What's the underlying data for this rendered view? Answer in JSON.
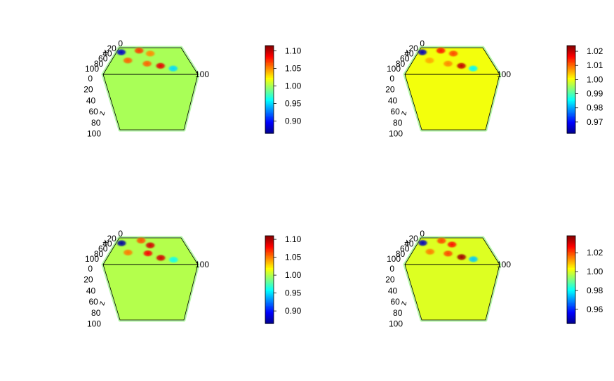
{
  "chart_data": [
    {
      "type": "heatmap",
      "x_axis_label": "x",
      "z_axis_label": "z",
      "y_ticks": [
        "0",
        "20",
        "40",
        "60",
        "80",
        "100"
      ],
      "z_ticks": [
        "0",
        "20",
        "40",
        "60",
        "80",
        "100"
      ],
      "x_end_tick": "100",
      "colorbar": {
        "ticks": [
          0.9,
          0.95,
          1.0,
          1.05,
          1.1
        ],
        "labels": [
          "0.90",
          "0.95",
          "1.00",
          "1.05",
          "1.10"
        ],
        "range": [
          0.865,
          1.115
        ]
      },
      "blobs": [
        {
          "u": 0.07,
          "v": 0.17,
          "value": 0.88
        },
        {
          "u": 0.33,
          "v": 0.11,
          "value": 1.07
        },
        {
          "u": 0.5,
          "v": 0.22,
          "value": 1.05
        },
        {
          "u": 0.21,
          "v": 0.48,
          "value": 1.06
        },
        {
          "u": 0.46,
          "v": 0.6,
          "value": 1.06
        },
        {
          "u": 0.62,
          "v": 0.68,
          "value": 1.09
        },
        {
          "u": 0.76,
          "v": 0.78,
          "value": 0.95
        }
      ]
    },
    {
      "type": "heatmap",
      "x_axis_label": "x",
      "z_axis_label": "z",
      "y_ticks": [
        "0",
        "20",
        "40",
        "60",
        "80",
        "100"
      ],
      "z_ticks": [
        "0",
        "20",
        "40",
        "60",
        "80",
        "100"
      ],
      "x_end_tick": "100",
      "colorbar": {
        "ticks": [
          0.97,
          0.98,
          0.99,
          1.0,
          1.01,
          1.02
        ],
        "labels": [
          "0.97",
          "0.98",
          "0.99",
          "1.00",
          "1.01",
          "1.02"
        ],
        "range": [
          0.962,
          1.024
        ]
      },
      "blobs": [
        {
          "u": 0.06,
          "v": 0.17,
          "value": 0.965
        },
        {
          "u": 0.33,
          "v": 0.11,
          "value": 1.015
        },
        {
          "u": 0.52,
          "v": 0.22,
          "value": 1.012
        },
        {
          "u": 0.21,
          "v": 0.48,
          "value": 1.006
        },
        {
          "u": 0.45,
          "v": 0.6,
          "value": 1.008
        },
        {
          "u": 0.61,
          "v": 0.68,
          "value": 1.02
        },
        {
          "u": 0.74,
          "v": 0.78,
          "value": 0.985
        }
      ]
    },
    {
      "type": "heatmap",
      "x_axis_label": "x",
      "z_axis_label": "z",
      "y_ticks": [
        "0",
        "20",
        "40",
        "60",
        "80",
        "100"
      ],
      "z_ticks": [
        "0",
        "20",
        "40",
        "60",
        "80",
        "100"
      ],
      "x_end_tick": "100",
      "colorbar": {
        "ticks": [
          0.9,
          0.95,
          1.0,
          1.05,
          1.1
        ],
        "labels": [
          "0.90",
          "0.95",
          "1.00",
          "1.05",
          "1.10"
        ],
        "range": [
          0.865,
          1.11
        ]
      },
      "blobs": [
        {
          "u": 0.08,
          "v": 0.2,
          "value": 0.87
        },
        {
          "u": 0.36,
          "v": 0.1,
          "value": 1.06
        },
        {
          "u": 0.5,
          "v": 0.28,
          "value": 1.09
        },
        {
          "u": 0.22,
          "v": 0.55,
          "value": 1.05
        },
        {
          "u": 0.47,
          "v": 0.58,
          "value": 1.08
        },
        {
          "u": 0.62,
          "v": 0.75,
          "value": 1.09
        },
        {
          "u": 0.76,
          "v": 0.82,
          "value": 0.96
        }
      ]
    },
    {
      "type": "heatmap",
      "x_axis_label": "x",
      "z_axis_label": "z",
      "y_ticks": [
        "0",
        "20",
        "40",
        "60",
        "80",
        "100"
      ],
      "z_ticks": [
        "0",
        "20",
        "40",
        "60",
        "80",
        "100"
      ],
      "x_end_tick": "100",
      "colorbar": {
        "ticks": [
          0.96,
          0.98,
          1.0,
          1.02
        ],
        "labels": [
          "0.96",
          "0.98",
          "1.00",
          "1.02"
        ],
        "range": [
          0.945,
          1.038
        ]
      },
      "blobs": [
        {
          "u": 0.07,
          "v": 0.19,
          "value": 0.95
        },
        {
          "u": 0.34,
          "v": 0.11,
          "value": 1.02
        },
        {
          "u": 0.5,
          "v": 0.25,
          "value": 1.025
        },
        {
          "u": 0.22,
          "v": 0.52,
          "value": 1.015
        },
        {
          "u": 0.45,
          "v": 0.59,
          "value": 1.02
        },
        {
          "u": 0.61,
          "v": 0.72,
          "value": 1.035
        },
        {
          "u": 0.74,
          "v": 0.8,
          "value": 0.975
        }
      ]
    }
  ]
}
